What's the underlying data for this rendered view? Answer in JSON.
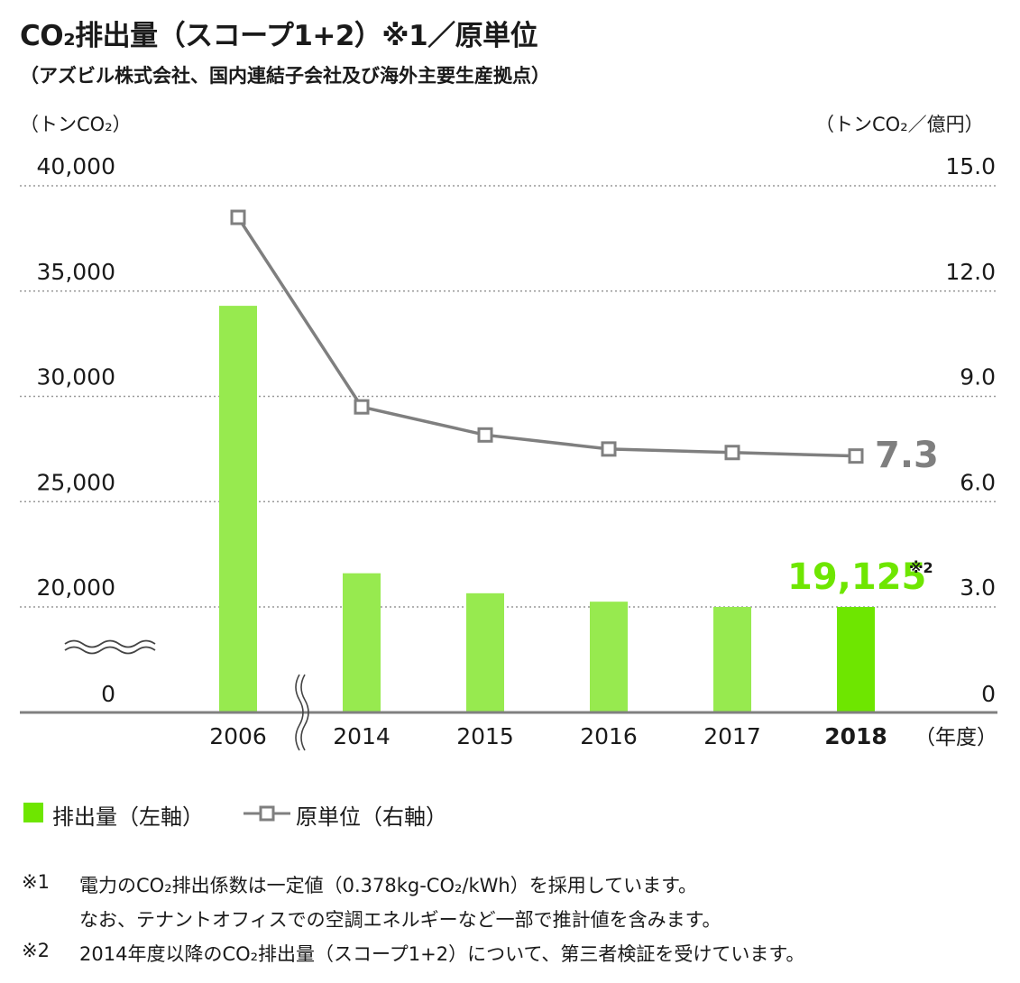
{
  "title": "CO₂排出量（スコープ1+2）※1／原単位",
  "subtitle": "（アズビル株式会社、国内連結子会社及び海外主要生産拠点）",
  "colors": {
    "bar": "#97ea4f",
    "bar_highlight": "#6ee600",
    "line": "#7f7f7f",
    "highlight_text": "#6ee600",
    "grid": "#999999"
  },
  "chart_data": {
    "type": "bar",
    "categories": [
      "2006",
      "2014",
      "2015",
      "2016",
      "2017",
      "2018"
    ],
    "xlabel": "（年度）",
    "y_left": {
      "label": "（トンCO₂）",
      "ticks": [
        "0",
        "20,000",
        "25,000",
        "30,000",
        "35,000",
        "40,000"
      ],
      "axis_break": "0–20,000"
    },
    "y_right": {
      "label": "（トンCO₂／億円）",
      "ticks": [
        "0",
        "3.0",
        "6.0",
        "9.0",
        "12.0",
        "15.0"
      ]
    },
    "series": [
      {
        "name": "排出量（左軸）",
        "type": "bar",
        "axis": "left",
        "values": [
          34300,
          21600,
          20650,
          20250,
          20000,
          19125
        ]
      },
      {
        "name": "原単位（右軸）",
        "type": "line",
        "axis": "right",
        "values": [
          14.1,
          8.7,
          7.9,
          7.5,
          7.4,
          7.3
        ]
      }
    ],
    "annotations": [
      {
        "text": "19,125",
        "superscript": "※2",
        "target": "排出量 2018"
      },
      {
        "text": "7.3",
        "target": "原単位 2018"
      }
    ]
  },
  "legend": {
    "bar_label": "排出量（左軸）",
    "line_label": "原単位（右軸）"
  },
  "notes": [
    {
      "mark": "※1",
      "text": "電力のCO₂排出係数は一定値（0.378kg-CO₂/kWh）を採用しています。"
    },
    {
      "mark": "",
      "text": "なお、テナントオフィスでの空調エネルギーなど一部で推計値を含みます。"
    },
    {
      "mark": "※2",
      "text": "2014年度以降のCO₂排出量（スコープ1+2）について、第三者検証を受けています。"
    }
  ]
}
